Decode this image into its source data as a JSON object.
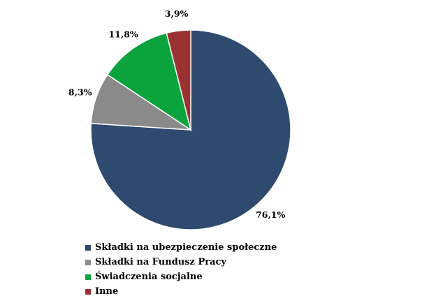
{
  "chart_data": {
    "type": "pie",
    "categories": [
      "Składki na ubezpieczenie społeczne",
      "Składki na Fundusz Pracy",
      "Świadczenia socjalne",
      "Inne"
    ],
    "values": [
      76.1,
      8.3,
      11.8,
      3.9
    ],
    "data_labels": [
      "76,1%",
      "8,3%",
      "11,8%",
      "3,9%"
    ],
    "colors": [
      "#2E4A6E",
      "#8A8A8A",
      "#0BA33C",
      "#9B3232"
    ],
    "start_angle_deg": 0,
    "direction": "clockwise",
    "legend_placement": "bottom-left",
    "title": ""
  }
}
